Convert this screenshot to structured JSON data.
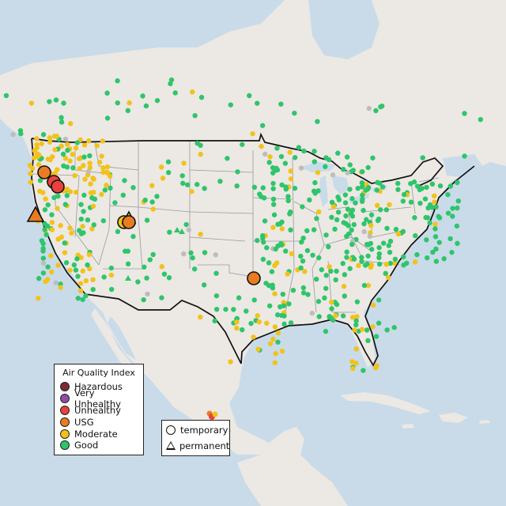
{
  "map": {
    "land_color": "#ece8e4",
    "water_color": "#c9dbe9",
    "border_color": "#111111",
    "state_line_color": "#999999"
  },
  "legend": {
    "title": "Air Quality Index",
    "categories": [
      {
        "label": "Hazardous",
        "color": "#7e2a33"
      },
      {
        "label": "Very Unhealthy",
        "color": "#8e4fa3"
      },
      {
        "label": "Unhealthy",
        "color": "#e8423c"
      },
      {
        "label": "USG",
        "color": "#e97c22"
      },
      {
        "label": "Moderate",
        "color": "#f2c21a"
      },
      {
        "label": "Good",
        "color": "#2ec56b"
      }
    ],
    "no_data_color": "#bdbdbd"
  },
  "monitor_type_legend": {
    "items": [
      {
        "label": "temporary",
        "icon": "circle-icon"
      },
      {
        "label": "permanent",
        "icon": "triangle-icon"
      }
    ]
  }
}
